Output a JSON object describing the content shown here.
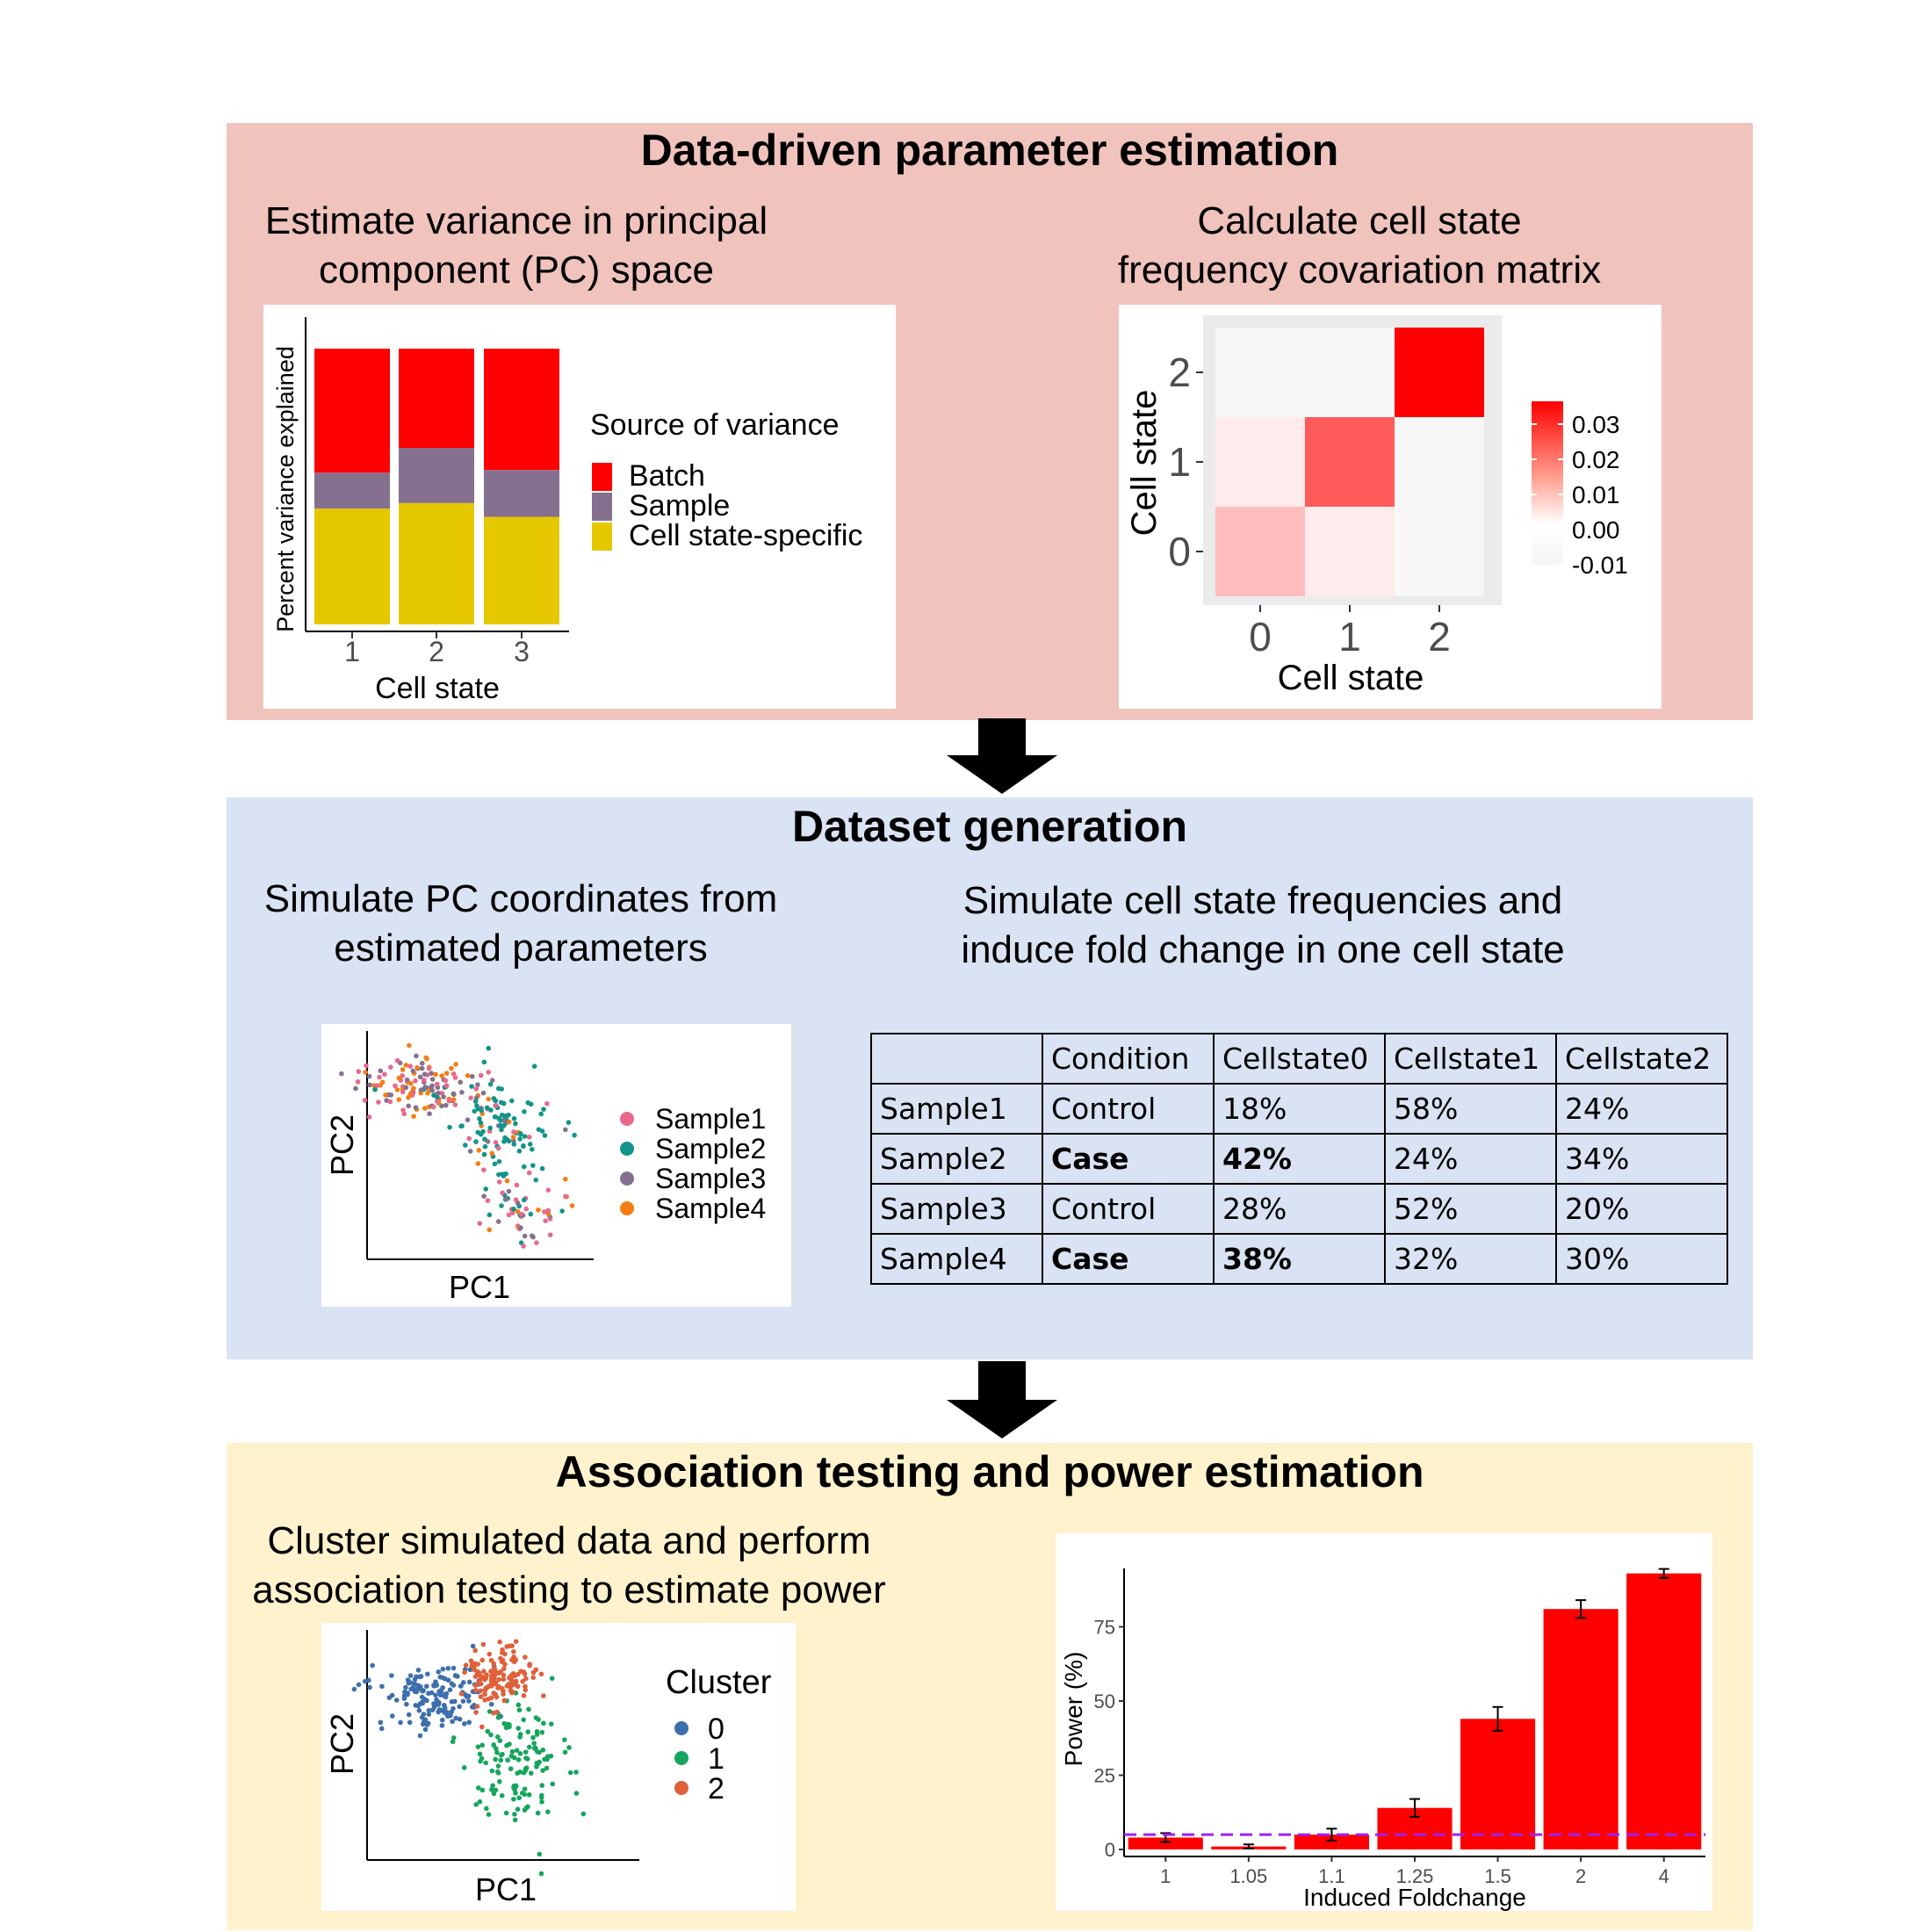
{
  "panel1": {
    "title": "Data-driven parameter estimation",
    "left_subtitle": [
      "Estimate variance in principal",
      "component (PC) space"
    ],
    "right_subtitle": [
      "Calculate cell state",
      "frequency covariation matrix"
    ]
  },
  "panel2": {
    "title": "Dataset generation",
    "left_subtitle": [
      "Simulate PC coordinates from",
      "estimated parameters"
    ],
    "right_subtitle": [
      "Simulate cell state frequencies and",
      "induce fold change in one cell state"
    ]
  },
  "panel3": {
    "title": "Association testing and power estimation",
    "left_subtitle": [
      "Cluster simulated data and perform",
      "association testing to estimate power"
    ]
  },
  "variance_chart": {
    "type": "stacked-bar",
    "categories": [
      "1",
      "2",
      "3"
    ],
    "series": [
      {
        "name": "Cell state-specific",
        "values": [
          42,
          44,
          39
        ],
        "color": "#e5c800"
      },
      {
        "name": "Sample",
        "values": [
          13,
          20,
          17
        ],
        "color": "#85718f"
      },
      {
        "name": "Batch",
        "values": [
          45,
          36,
          44
        ],
        "color": "#ff0000"
      }
    ],
    "xlabel": "Cell state",
    "ylabel": "Percent variance explained",
    "legend_title": "Source of variance",
    "legend": [
      "Batch",
      "Sample",
      "Cell state-specific"
    ]
  },
  "covariance_heatmap": {
    "type": "heatmap",
    "x_ticks": [
      "0",
      "1",
      "2"
    ],
    "y_ticks": [
      "0",
      "1",
      "2"
    ],
    "cells": [
      [
        0.008,
        0.0015,
        0.0002
      ],
      [
        0.0015,
        0.022,
        0.0002
      ],
      [
        0.0002,
        0.0002,
        0.035
      ]
    ],
    "xlabel": "Cell state",
    "ylabel": "Cell state",
    "colorbar_ticks": [
      "0.03",
      "0.02",
      "0.01",
      "0.00",
      "-0.01"
    ]
  },
  "sample_scatter": {
    "type": "scatter",
    "xlabel": "PC1",
    "ylabel": "PC2",
    "legend": [
      {
        "name": "Sample1",
        "color": "#e8698e"
      },
      {
        "name": "Sample2",
        "color": "#12948a"
      },
      {
        "name": "Sample3",
        "color": "#85718f"
      },
      {
        "name": "Sample4",
        "color": "#f47d14"
      }
    ]
  },
  "frequency_table": {
    "header": [
      "",
      "Condition",
      "Cellstate0",
      "Cellstate1",
      "Cellstate2"
    ],
    "rows": [
      [
        "Sample1",
        "Control",
        "18%",
        "58%",
        "24%"
      ],
      [
        "Sample2",
        "Case",
        "42%",
        "24%",
        "34%"
      ],
      [
        "Sample3",
        "Control",
        "28%",
        "52%",
        "20%"
      ],
      [
        "Sample4",
        "Case",
        "38%",
        "32%",
        "30%"
      ]
    ]
  },
  "cluster_scatter": {
    "type": "scatter",
    "xlabel": "PC1",
    "ylabel": "PC2",
    "legend_title": "Cluster",
    "legend": [
      {
        "name": "0",
        "color": "#3d6fad"
      },
      {
        "name": "1",
        "color": "#16a55c"
      },
      {
        "name": "2",
        "color": "#e0603a"
      }
    ]
  },
  "chart_data": {
    "type": "bar",
    "categories": [
      "1",
      "1.05",
      "1.1",
      "1.25",
      "1.5",
      "2",
      "4"
    ],
    "values": [
      4,
      1,
      5,
      14,
      44,
      81,
      93
    ],
    "errors": [
      1.5,
      0.7,
      2,
      3,
      4,
      3,
      1.5
    ],
    "reference_line": 5,
    "xlabel": "Induced Foldchange",
    "ylabel": "Power (%)",
    "y_ticks": [
      "0",
      "25",
      "50",
      "75"
    ],
    "ylim": [
      0,
      100
    ],
    "bar_color": "#ff0000",
    "reference_color": "#a020f0"
  }
}
